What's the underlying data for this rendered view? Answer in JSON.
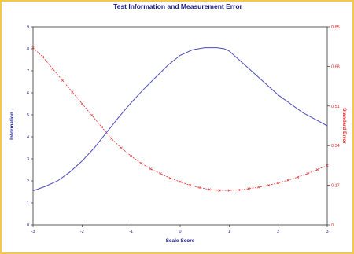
{
  "chart_data": {
    "type": "line",
    "title": "Test Information and Measurement Error",
    "xlabel": "Scale Score",
    "ylabel_left": "Information",
    "ylabel_right": "Standard Error",
    "xlim": [
      -3,
      3
    ],
    "ylim_left": [
      0,
      9
    ],
    "ylim_right": [
      0,
      0.85
    ],
    "x_ticks": [
      "-3",
      "-2",
      "-1",
      "0",
      "1",
      "2",
      "3"
    ],
    "y_ticks_left": [
      "0",
      "1",
      "2",
      "3",
      "4",
      "5",
      "6",
      "7",
      "8",
      "9"
    ],
    "y_ticks_right": [
      "0",
      "0.17",
      "0.34",
      "0.51",
      "0.68",
      "0.85"
    ],
    "grid": false,
    "legend": "none",
    "colors": {
      "information": "#4b4bb5",
      "standard_error": "#e03030",
      "left_axis": "#1a1a8c",
      "right_axis": "#e02020"
    },
    "series": [
      {
        "axis": "left",
        "style": "solid",
        "x": [
          -3,
          -2.75,
          -2.5,
          -2.25,
          -2,
          -1.75,
          -1.5,
          -1.25,
          -1,
          -0.75,
          -0.5,
          -0.25,
          0,
          0.25,
          0.5,
          0.75,
          0.9,
          1,
          1.25,
          1.5,
          1.75,
          2,
          2.25,
          2.5,
          2.75,
          3
        ],
        "values": [
          1.55,
          1.75,
          2.0,
          2.4,
          2.9,
          3.5,
          4.2,
          4.9,
          5.55,
          6.15,
          6.7,
          7.25,
          7.7,
          7.95,
          8.05,
          8.05,
          8.0,
          7.9,
          7.4,
          6.9,
          6.4,
          5.9,
          5.5,
          5.1,
          4.8,
          4.5
        ]
      },
      {
        "axis": "right",
        "style": "dashed-markers",
        "x": [
          -3,
          -2.8,
          -2.6,
          -2.4,
          -2.2,
          -2,
          -1.8,
          -1.6,
          -1.4,
          -1.2,
          -1,
          -0.8,
          -0.6,
          -0.4,
          -0.2,
          0,
          0.2,
          0.4,
          0.6,
          0.8,
          1,
          1.2,
          1.4,
          1.6,
          1.8,
          2,
          2.2,
          2.4,
          2.6,
          2.8,
          3
        ],
        "values": [
          0.76,
          0.72,
          0.67,
          0.62,
          0.57,
          0.52,
          0.47,
          0.42,
          0.37,
          0.33,
          0.295,
          0.265,
          0.24,
          0.22,
          0.2,
          0.185,
          0.17,
          0.16,
          0.152,
          0.148,
          0.148,
          0.15,
          0.155,
          0.162,
          0.17,
          0.18,
          0.192,
          0.205,
          0.22,
          0.237,
          0.255
        ]
      }
    ]
  }
}
